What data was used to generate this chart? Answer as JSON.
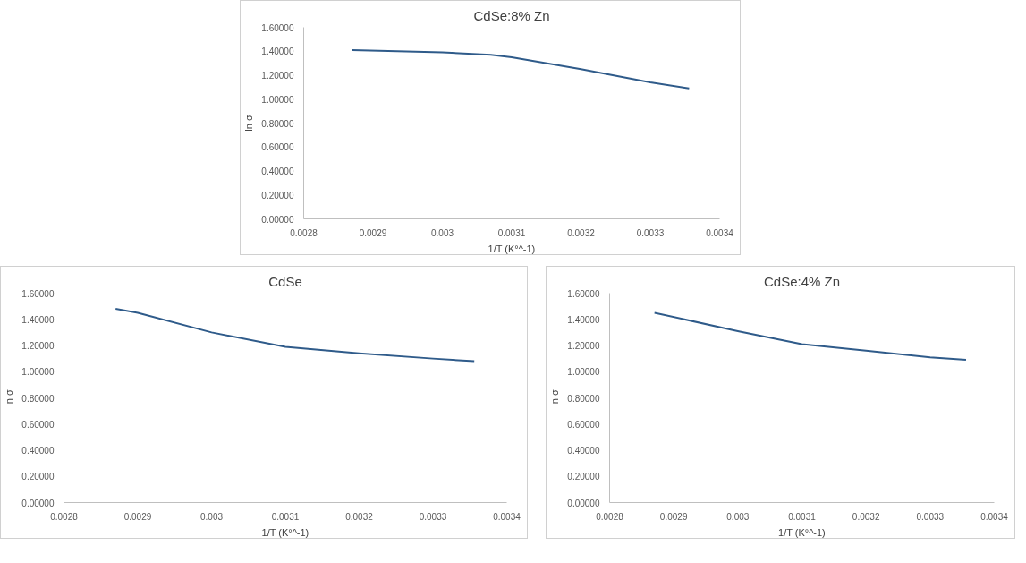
{
  "chart_data": [
    {
      "type": "line",
      "title": "CdSe:8% Zn",
      "xlabel": "1/T (K°^-1)",
      "ylabel": "ln σ",
      "grid": false,
      "marker": "none",
      "line_style": "solid",
      "x": [
        0.00287,
        0.003,
        0.00307,
        0.0031,
        0.0032,
        0.0033,
        0.003356
      ],
      "series": [
        {
          "color": "#2f5b8a",
          "values": [
            1.41,
            1.39,
            1.37,
            1.35,
            1.25,
            1.14,
            1.09
          ]
        }
      ],
      "xlim": [
        0.0028,
        0.0034
      ],
      "xticks": [
        0.0028,
        0.0029,
        0.003,
        0.0031,
        0.0032,
        0.0033,
        0.0034
      ],
      "ylim": [
        0,
        1.6
      ],
      "yticks": [
        {
          "value": 0,
          "label": "0.00000"
        },
        {
          "value": 0.2,
          "label": "0.20000"
        },
        {
          "value": 0.4,
          "label": "0.40000"
        },
        {
          "value": 0.6,
          "label": "0.60000"
        },
        {
          "value": 0.8,
          "label": "0.80000"
        },
        {
          "value": 1.0,
          "label": "1.00000"
        },
        {
          "value": 1.2,
          "label": "1.20000"
        },
        {
          "value": 1.4,
          "label": "1.40000"
        },
        {
          "value": 1.6,
          "label": "1.60000"
        }
      ]
    },
    {
      "type": "line",
      "title": "CdSe",
      "xlabel": "1/T (K°^-1)",
      "ylabel": "ln σ",
      "grid": false,
      "marker": "none",
      "line_style": "solid",
      "x": [
        0.00287,
        0.0029,
        0.003,
        0.0031,
        0.0032,
        0.0033,
        0.003356
      ],
      "series": [
        {
          "color": "#2f5b8a",
          "values": [
            1.48,
            1.45,
            1.3,
            1.19,
            1.14,
            1.1,
            1.08
          ]
        }
      ],
      "xlim": [
        0.0028,
        0.0034
      ],
      "xticks": [
        0.0028,
        0.0029,
        0.003,
        0.0031,
        0.0032,
        0.0033,
        0.0034
      ],
      "ylim": [
        0,
        1.6
      ],
      "yticks": [
        {
          "value": 0,
          "label": "0.00000"
        },
        {
          "value": 0.2,
          "label": "0.20000"
        },
        {
          "value": 0.4,
          "label": "0.40000"
        },
        {
          "value": 0.6,
          "label": "0.60000"
        },
        {
          "value": 0.8,
          "label": "0.80000"
        },
        {
          "value": 1.0,
          "label": "1.00000"
        },
        {
          "value": 1.2,
          "label": "1.20000"
        },
        {
          "value": 1.4,
          "label": "1.40000"
        },
        {
          "value": 1.6,
          "label": "1.60000"
        }
      ]
    },
    {
      "type": "line",
      "title": "CdSe:4% Zn",
      "xlabel": "1/T (K°^-1)",
      "ylabel": "ln σ",
      "grid": false,
      "marker": "none",
      "line_style": "solid",
      "x": [
        0.00287,
        0.003,
        0.0031,
        0.0032,
        0.0033,
        0.003356
      ],
      "series": [
        {
          "color": "#2f5b8a",
          "values": [
            1.45,
            1.31,
            1.21,
            1.16,
            1.11,
            1.09
          ]
        }
      ],
      "xlim": [
        0.0028,
        0.0034
      ],
      "xticks": [
        0.0028,
        0.0029,
        0.003,
        0.0031,
        0.0032,
        0.0033,
        0.0034
      ],
      "ylim": [
        0,
        1.6
      ],
      "yticks": [
        {
          "value": 0,
          "label": "0.00000"
        },
        {
          "value": 0.2,
          "label": "0.20000"
        },
        {
          "value": 0.4,
          "label": "0.40000"
        },
        {
          "value": 0.6,
          "label": "0.60000"
        },
        {
          "value": 0.8,
          "label": "0.80000"
        },
        {
          "value": 1.0,
          "label": "1.00000"
        },
        {
          "value": 1.2,
          "label": "1.20000"
        },
        {
          "value": 1.4,
          "label": "1.40000"
        },
        {
          "value": 1.6,
          "label": "1.60000"
        }
      ]
    }
  ]
}
